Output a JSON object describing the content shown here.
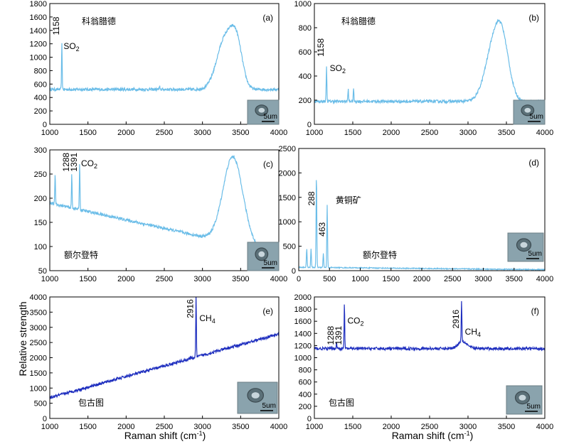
{
  "common": {
    "xlabel": "Raman shift (cm",
    "xlabel_sup": "-1",
    "xlabel_end": ")",
    "ylabel": "Relative strength",
    "scale_label": "5um"
  },
  "chart_data": [
    {
      "type": "line",
      "id": "a",
      "panel_label": "(a)",
      "locality": "科翁腊德",
      "xlim": [
        1000,
        4000
      ],
      "ylim": [
        0,
        1800
      ],
      "xticks": [
        1000,
        1500,
        2000,
        2500,
        3000,
        3500,
        4000
      ],
      "yticks": [
        0,
        200,
        400,
        600,
        800,
        1000,
        1200,
        1400,
        1600,
        1800
      ],
      "color": "#6bbde8",
      "baseline": 520,
      "broad_bands": [
        {
          "center": 3300,
          "width": 110,
          "height": 760
        },
        {
          "center": 3450,
          "width": 75,
          "height": 560
        }
      ],
      "peaks": [
        {
          "x": 1158,
          "y": 1200
        },
        {
          "x": 2440,
          "y": 560
        }
      ],
      "annotations": [
        {
          "text": "1158",
          "x": 1158,
          "y": 1330
        }
      ],
      "species": [
        {
          "text": "SO",
          "sub": "2",
          "x": 1180,
          "y": 1120
        }
      ]
    },
    {
      "type": "line",
      "id": "b",
      "panel_label": "(b)",
      "locality": "科翁腊德",
      "xlim": [
        1000,
        4000
      ],
      "ylim": [
        0,
        1000
      ],
      "xticks": [
        1000,
        1500,
        2000,
        2500,
        3000,
        3500,
        4000
      ],
      "yticks": [
        0,
        200,
        400,
        600,
        800,
        1000
      ],
      "color": "#6bbde8",
      "baseline": 190,
      "broad_bands": [
        {
          "center": 3330,
          "width": 110,
          "height": 420
        },
        {
          "center": 3450,
          "width": 90,
          "height": 380
        }
      ],
      "peaks": [
        {
          "x": 1158,
          "y": 480
        },
        {
          "x": 1440,
          "y": 290
        },
        {
          "x": 1510,
          "y": 300
        }
      ],
      "annotations": [
        {
          "text": "1158",
          "x": 1158,
          "y": 560
        }
      ],
      "species": [
        {
          "text": "SO",
          "sub": "2",
          "x": 1200,
          "y": 440
        }
      ]
    },
    {
      "type": "line",
      "id": "c",
      "panel_label": "(c)",
      "locality": "额尔登特",
      "xlim": [
        1000,
        4000
      ],
      "ylim": [
        50,
        300
      ],
      "xticks": [
        1000,
        1500,
        2000,
        2500,
        3000,
        3500,
        4000
      ],
      "yticks": [
        50,
        100,
        150,
        200,
        250,
        300
      ],
      "color": "#6bbde8",
      "baseline": 190,
      "baseline_end": 85,
      "broad_bands": [
        {
          "center": 3400,
          "width": 130,
          "height": 180
        }
      ],
      "peaks": [
        {
          "x": 1070,
          "y": 252
        },
        {
          "x": 1288,
          "y": 250
        },
        {
          "x": 1391,
          "y": 275
        }
      ],
      "annotations": [
        {
          "text": "1288",
          "x": 1288,
          "y": 255
        },
        {
          "text": "1391",
          "x": 1391,
          "y": 255
        }
      ],
      "species": [
        {
          "text": "CO",
          "sub": "2",
          "x": 1410,
          "y": 266
        }
      ]
    },
    {
      "type": "line",
      "id": "d",
      "panel_label": "(d)",
      "locality": "额尔登特",
      "mineral": "黄铜矿",
      "xlim": [
        0,
        4000
      ],
      "ylim": [
        0,
        2500
      ],
      "xticks": [
        0,
        500,
        1000,
        1500,
        2000,
        2500,
        3000,
        3500,
        4000
      ],
      "yticks": [
        0,
        500,
        1000,
        1500,
        2000,
        2500
      ],
      "color": "#6bbde8",
      "baseline": 70,
      "baseline_end": 20,
      "broad_bands": [],
      "peaks": [
        {
          "x": 130,
          "y": 450
        },
        {
          "x": 200,
          "y": 450
        },
        {
          "x": 288,
          "y": 2000
        },
        {
          "x": 400,
          "y": 350
        },
        {
          "x": 463,
          "y": 1340
        }
      ],
      "annotations": [
        {
          "text": "288",
          "x": 300,
          "y": 1330
        },
        {
          "text": "463",
          "x": 475,
          "y": 700
        }
      ],
      "species": []
    },
    {
      "type": "line",
      "id": "e",
      "panel_label": "(e)",
      "locality": "包古图",
      "xlim": [
        1000,
        4000
      ],
      "ylim": [
        0,
        4000
      ],
      "xticks": [
        1000,
        1500,
        2000,
        2500,
        3000,
        3500,
        4000
      ],
      "yticks": [
        0,
        500,
        1000,
        1500,
        2000,
        2500,
        3000,
        3500,
        4000
      ],
      "color": "#1f2fbf",
      "baseline": 680,
      "baseline_end": 2780,
      "broad_bands": [],
      "peaks": [
        {
          "x": 2916,
          "y": 4050
        }
      ],
      "annotations": [
        {
          "text": "2916",
          "x": 2916,
          "y": 3300
        }
      ],
      "species": [
        {
          "text": "CH",
          "sub": "4",
          "x": 2960,
          "y": 3200
        }
      ]
    },
    {
      "type": "line",
      "id": "f",
      "panel_label": "(f)",
      "locality": "包古图",
      "xlim": [
        1000,
        4000
      ],
      "ylim": [
        0,
        2000
      ],
      "xticks": [
        1000,
        1500,
        2000,
        2500,
        3000,
        3500,
        4000
      ],
      "yticks": [
        0,
        200,
        400,
        600,
        800,
        1000,
        1200,
        1400,
        1600,
        1800,
        2000
      ],
      "color": "#1f2fbf",
      "baseline": 1150,
      "broad_bands": [
        {
          "center": 2930,
          "width": 60,
          "height": 120
        }
      ],
      "peaks": [
        {
          "x": 1288,
          "y": 1250
        },
        {
          "x": 1391,
          "y": 1880
        },
        {
          "x": 2916,
          "y": 1820
        }
      ],
      "annotations": [
        {
          "text": "1288",
          "x": 1288,
          "y": 1210
        },
        {
          "text": "1391",
          "x": 1391,
          "y": 1210
        },
        {
          "text": "2916",
          "x": 2916,
          "y": 1480
        }
      ],
      "species": [
        {
          "text": "CO",
          "sub": "2",
          "x": 1430,
          "y": 1560
        },
        {
          "text": "CH",
          "sub": "4",
          "x": 2960,
          "y": 1380
        }
      ]
    }
  ]
}
